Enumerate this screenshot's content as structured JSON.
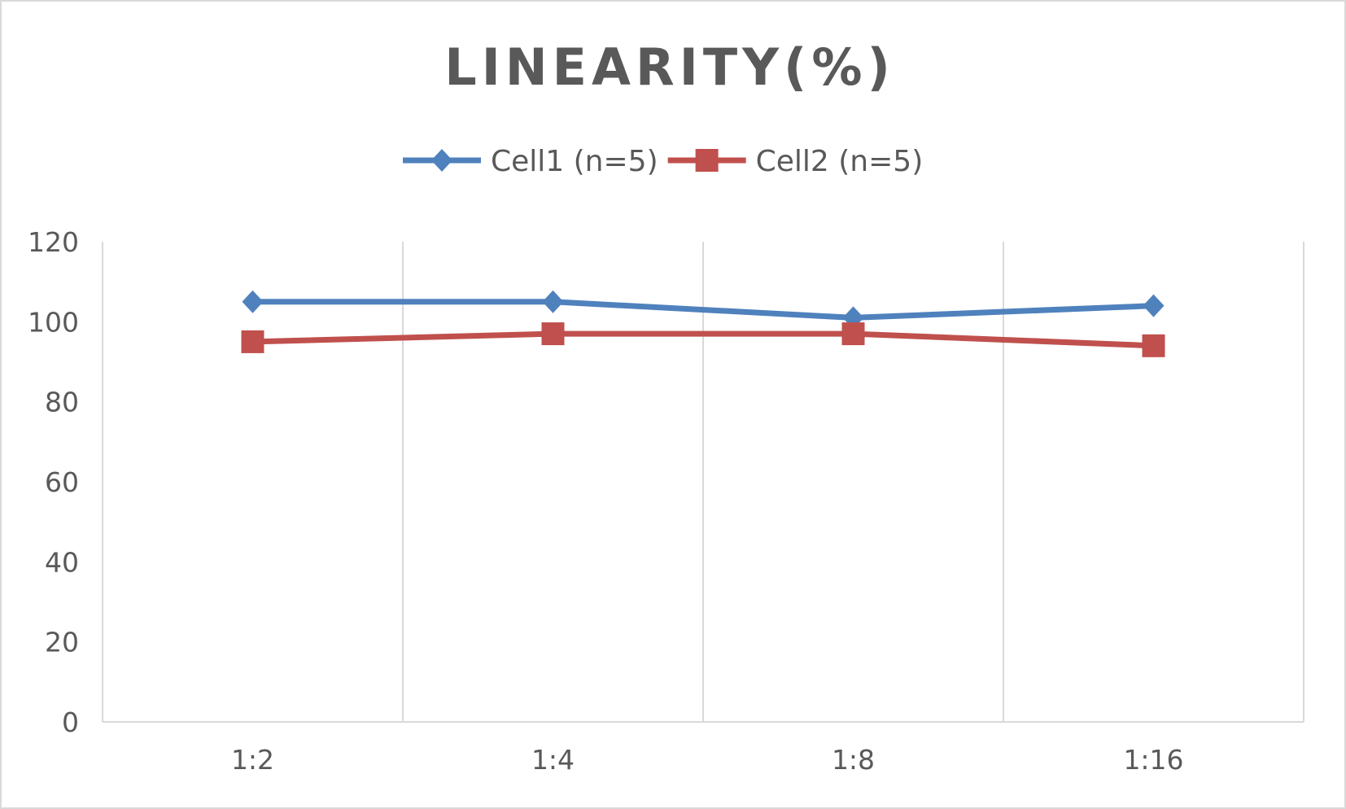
{
  "chart_data": {
    "type": "line",
    "title": "LINEARITY(%)",
    "categories": [
      "1:2",
      "1:4",
      "1:8",
      "1:16"
    ],
    "series": [
      {
        "name": "Cell1 (n=5)",
        "values": [
          105,
          105,
          101,
          104
        ],
        "color": "#4f81bd",
        "marker": "diamond"
      },
      {
        "name": "Cell2 (n=5)",
        "values": [
          95,
          97,
          97,
          94
        ],
        "color": "#c0504d",
        "marker": "square"
      }
    ],
    "ylim": [
      0,
      120
    ],
    "yticks": [
      0,
      20,
      40,
      60,
      80,
      100,
      120
    ],
    "grid": "vertical",
    "legend": "top"
  }
}
